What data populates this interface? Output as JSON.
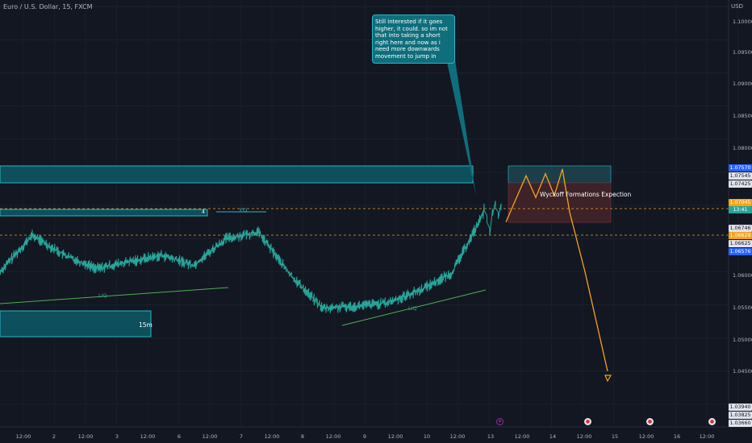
{
  "header": {
    "symbol": "Euro / U.S. Dollar, 15, FXCM",
    "currency": "USD"
  },
  "annotations": {
    "callout_text": "Still interested if it goes higher, it could. so im not that into taking a short right here and now as i need more downwards movement to jump in",
    "wyckoff_label": "Wyckoff Formations Expection",
    "eq_label": "EQ",
    "liq_label_1": "LIQ",
    "liq_label_2": "LIQ",
    "timeframe_label": "15m",
    "zone_number": "4"
  },
  "colors": {
    "background": "#131722",
    "price_line": "#26a69a",
    "zone_fill": "#0d4f5c",
    "zone_border": "#2bb5c4",
    "forecast": "#f7a21b",
    "red_zone": "#5a2a30",
    "dashed_level": "#f7a21b",
    "trendline": "#4caf50"
  },
  "price_axis": {
    "ticks": [
      "1.10000",
      "1.09500",
      "1.09000",
      "1.08500",
      "1.08000",
      "1.06000",
      "1.05500",
      "1.05000",
      "1.04500"
    ],
    "tags": [
      {
        "text": "1.07570",
        "color": "#2962ff"
      },
      {
        "text": "1.07545",
        "color": "#e0e3eb",
        "text_color": "#131722"
      },
      {
        "text": "1.07425",
        "color": "#e0e3eb",
        "text_color": "#131722"
      },
      {
        "text": "1.07045",
        "color": "#f7a21b"
      },
      {
        "text": "13:41",
        "color": "#26a69a"
      },
      {
        "text": "1.06746",
        "color": "#e0e3eb",
        "text_color": "#131722"
      },
      {
        "text": "1.06629",
        "color": "#f7a21b"
      },
      {
        "text": "1.06625",
        "color": "#e0e3eb",
        "text_color": "#131722"
      },
      {
        "text": "1.06576",
        "color": "#2962ff"
      },
      {
        "text": "1.03940",
        "color": "#e0e3eb",
        "text_color": "#131722"
      },
      {
        "text": "1.03825",
        "color": "#e0e3eb",
        "text_color": "#131722"
      },
      {
        "text": "1.03660",
        "color": "#e0e3eb",
        "text_color": "#131722"
      }
    ]
  },
  "time_axis": {
    "labels": [
      "12:00",
      "2",
      "12:00",
      "3",
      "12:00",
      "6",
      "12:00",
      "7",
      "12:00",
      "8",
      "12:00",
      "9",
      "12:00",
      "10",
      "12:00",
      "13",
      "12:00",
      "14",
      "12:00",
      "15",
      "12:00",
      "16",
      "12:00"
    ]
  },
  "chart_data": {
    "type": "line",
    "title": "Euro / U.S. Dollar, 15, FXCM",
    "xlabel": "",
    "ylabel": "USD",
    "ylim": [
      1.0366,
      1.101
    ],
    "x": [
      "Jan 1 12:00",
      "Jan 2",
      "Jan 2 12:00",
      "Jan 3",
      "Jan 3 12:00",
      "Jan 6",
      "Jan 6 12:00",
      "Jan 7",
      "Jan 7 12:00",
      "Jan 8",
      "Jan 8 12:00",
      "Jan 9",
      "Jan 9 12:00",
      "Jan 10",
      "Jan 10 12:00",
      "Jan 13"
    ],
    "series": [
      {
        "values": [
          1.06,
          1.0655,
          1.0625,
          1.0605,
          1.0615,
          1.0625,
          1.061,
          1.065,
          1.066,
          1.0595,
          1.0545,
          1.0548,
          1.0553,
          1.0572,
          1.0598,
          1.069
        ]
      }
    ],
    "levels": {
      "supply_zone": [
        1.0744,
        1.0773
      ],
      "eq_level": 1.0702,
      "dashed_upper": 1.0704,
      "dashed_lower": 1.0663,
      "current_price": 1.0698
    },
    "forecast_path": [
      1.0675,
      1.0745,
      1.0712,
      1.0748,
      1.0715,
      1.0755,
      1.069,
      1.06,
      1.045
    ]
  }
}
